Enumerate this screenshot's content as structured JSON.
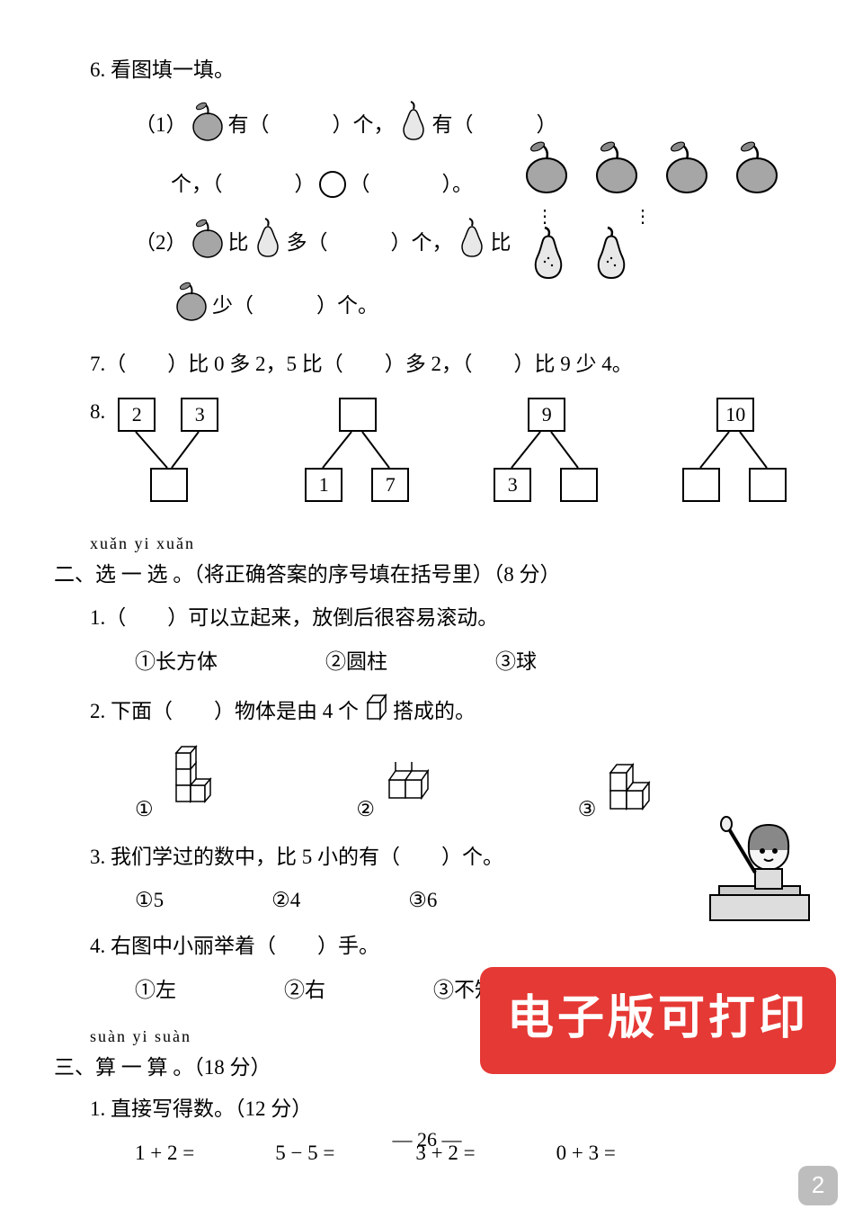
{
  "q6": {
    "title": "6. 看图填一填。",
    "line1_a": "（1）",
    "line1_b": "有（",
    "line1_c": "）个，",
    "line1_d": "有（",
    "line1_e": "）",
    "line2_a": "个，（",
    "line2_b": "）",
    "line2_c": "（",
    "line2_d": "）。",
    "line3_a": "（2）",
    "line3_b": "比",
    "line3_c": "多（",
    "line3_d": "）个，",
    "line3_e": "比",
    "line4_a": "少（",
    "line4_b": "）个。",
    "apple_color": "#a6a6a6",
    "pear_color": "#e8e8e8",
    "apples_count": 4,
    "pears_count": 2
  },
  "q7": {
    "text": "7.（　　）比 0 多 2，5 比（　　）多 2，（　　）比 9 少 4。"
  },
  "q8": {
    "label": "8.",
    "bonds": [
      {
        "top": [
          "2",
          "3"
        ],
        "bottom": [
          ""
        ],
        "type": "merge"
      },
      {
        "top": [
          ""
        ],
        "bottom": [
          "1",
          "7"
        ],
        "type": "split"
      },
      {
        "top": [
          "9"
        ],
        "bottom": [
          "3",
          ""
        ],
        "type": "split"
      },
      {
        "top": [
          "10"
        ],
        "bottom": [
          "",
          ""
        ],
        "type": "split"
      }
    ]
  },
  "sec2": {
    "pinyin": "xuǎn  yi  xuǎn",
    "title": "二、选  一  选 。（将正确答案的序号填在括号里）（8 分）",
    "q1": {
      "stem": "1.（　　）可以立起来，放倒后很容易滚动。",
      "o1": "①长方体",
      "o2": "②圆柱",
      "o3": "③球"
    },
    "q2": {
      "stem_a": "2. 下面（　　）物体是由 4 个",
      "stem_b": "搭成的。",
      "o1": "①",
      "o2": "②",
      "o3": "③"
    },
    "q3": {
      "stem": "3. 我们学过的数中，比 5 小的有（　　）个。",
      "o1": "①5",
      "o2": "②4",
      "o3": "③6"
    },
    "q4": {
      "stem": "4. 右图中小丽举着（　　）手。",
      "o1": "①左",
      "o2": "②右",
      "o3": "③不知道"
    }
  },
  "sec3": {
    "pinyin": "suàn  yi  suàn",
    "title": "三、算  一  算 。（18 分）",
    "q1": "1. 直接写得数。（12 分）",
    "calcs": [
      "1 + 2 =",
      "5 − 5 =",
      "3 + 2 =",
      "0 + 3 ="
    ]
  },
  "footer": "—  26  —",
  "watermark": "电子版可打印",
  "page_badge": "2"
}
